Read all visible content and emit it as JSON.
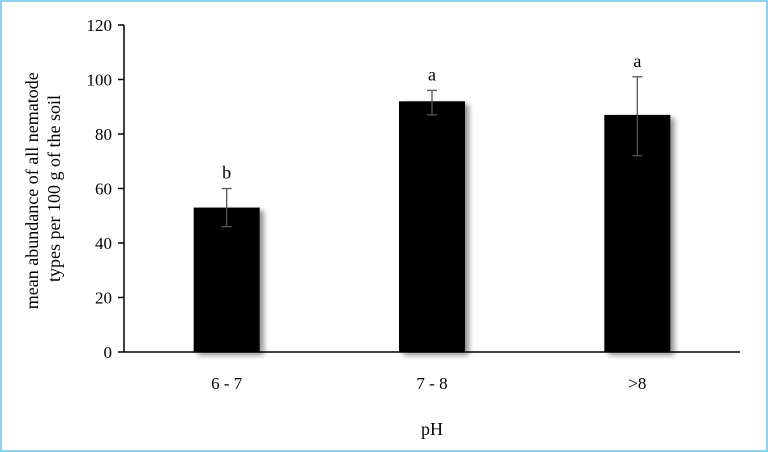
{
  "chart_data": {
    "type": "bar",
    "title": "",
    "xlabel": "pH",
    "ylabel_lines": [
      "mean abundance of  all nematode",
      "types per 100 g of the soil"
    ],
    "categories": [
      "6 - 7",
      "7 - 8",
      ">8"
    ],
    "values": [
      53,
      92,
      87
    ],
    "error_low": [
      46,
      87,
      72
    ],
    "error_high": [
      60,
      96,
      101
    ],
    "labels": [
      "b",
      "a",
      "a"
    ],
    "ylim": [
      0,
      120
    ],
    "yticks": [
      "0",
      "20",
      "40",
      "60",
      "80",
      "100",
      "120"
    ],
    "grid": false,
    "legend": "none",
    "bar_color": "#000000",
    "frame_color": "#8fd0ee"
  }
}
